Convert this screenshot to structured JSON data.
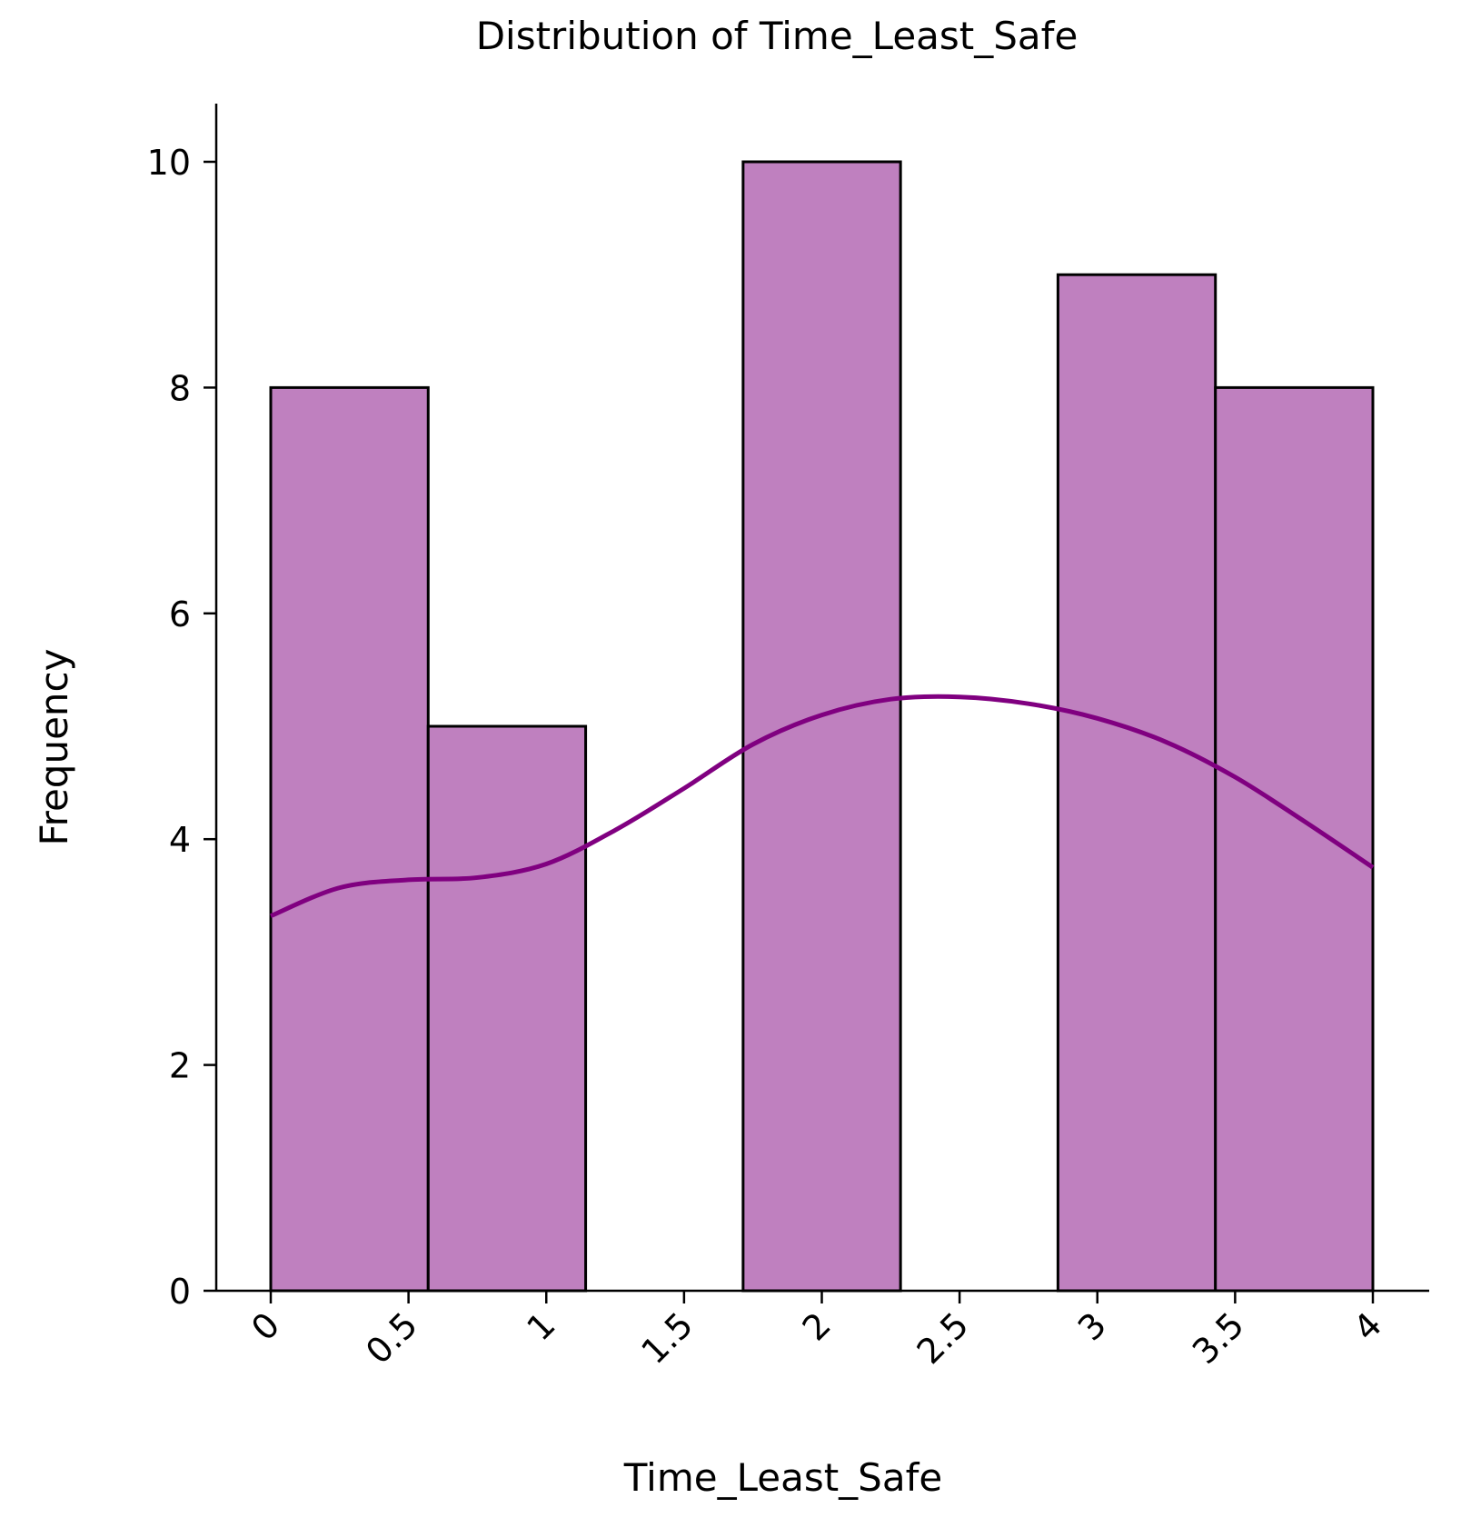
{
  "chart_data": {
    "type": "bar",
    "subtype": "histogram",
    "title": "Distribution of Time_Least_Safe",
    "xlabel": "Time_Least_Safe",
    "ylabel": "Frequency",
    "xlim": [
      -0.2,
      4.2
    ],
    "ylim": [
      0,
      10.5
    ],
    "x_ticks": [
      "0",
      "0.5",
      "1",
      "1.5",
      "2",
      "2.5",
      "3",
      "3.5",
      "4"
    ],
    "x_tick_values": [
      0,
      0.5,
      1,
      1.5,
      2,
      2.5,
      3,
      3.5,
      4
    ],
    "y_ticks": [
      "0",
      "2",
      "4",
      "6",
      "8",
      "10"
    ],
    "y_tick_values": [
      0,
      2,
      4,
      6,
      8,
      10
    ],
    "bins": [
      {
        "x0": 0.0,
        "x1": 0.5714,
        "count": 8
      },
      {
        "x0": 0.5714,
        "x1": 1.1429,
        "count": 5
      },
      {
        "x0": 1.1429,
        "x1": 1.7143,
        "count": 0
      },
      {
        "x0": 1.7143,
        "x1": 2.2857,
        "count": 10
      },
      {
        "x0": 2.2857,
        "x1": 2.8571,
        "count": 0
      },
      {
        "x0": 2.8571,
        "x1": 3.4286,
        "count": 9
      },
      {
        "x0": 3.4286,
        "x1": 4.0,
        "count": 8
      }
    ],
    "kde": {
      "x": [
        0,
        0.25,
        0.5,
        0.75,
        1.0,
        1.25,
        1.5,
        1.75,
        2.0,
        2.25,
        2.5,
        2.75,
        3.0,
        3.25,
        3.5,
        3.75,
        4.0
      ],
      "y": [
        3.32,
        3.57,
        3.64,
        3.66,
        3.78,
        4.08,
        4.45,
        4.84,
        5.1,
        5.24,
        5.26,
        5.2,
        5.07,
        4.86,
        4.55,
        4.16,
        3.75
      ]
    },
    "bar_color": "#bf80bf",
    "kde_color": "#800080",
    "grid": false,
    "legend": false
  }
}
